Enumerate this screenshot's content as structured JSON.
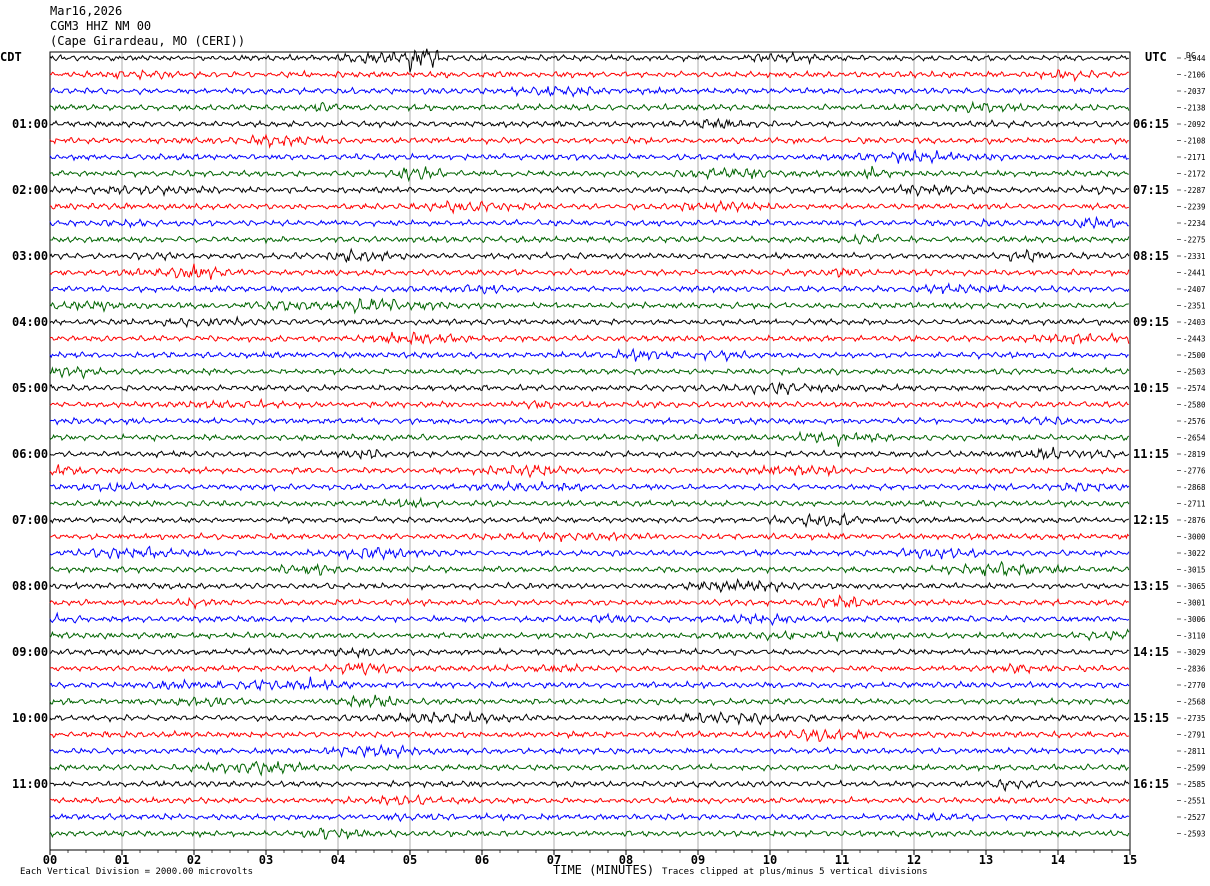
{
  "header": {
    "date": "Mar16,2026",
    "station": "CGM3 HHZ NM 00",
    "location": "(Cape Girardeau, MO (CERI))"
  },
  "chart_data": {
    "type": "line",
    "description_label_left": "CDT",
    "description_label_right": "UTC",
    "dc_label": "DC",
    "xlabel": "TIME (MINUTES)",
    "xlim": [
      0,
      15
    ],
    "x_ticks": [
      "00",
      "01",
      "02",
      "03",
      "04",
      "05",
      "06",
      "07",
      "08",
      "09",
      "10",
      "11",
      "12",
      "13",
      "14",
      "15"
    ],
    "trace_count": 48,
    "trace_colors": [
      "#000000",
      "#ff0000",
      "#0000ff",
      "#006400"
    ],
    "left_hour_labels": [
      "01:00",
      "02:00",
      "03:00",
      "04:00",
      "05:00",
      "06:00",
      "07:00",
      "08:00",
      "09:00",
      "10:00",
      "11:00"
    ],
    "right_hour_labels": [
      "06:15",
      "07:15",
      "08:15",
      "09:15",
      "10:15",
      "11:15",
      "12:15",
      "13:15",
      "14:15",
      "15:15",
      "16:15"
    ],
    "dc_offsets": [
      "-1944",
      "-2106",
      "-2037",
      "-2138",
      "-2092",
      "-2108",
      "-2171",
      "-2172",
      "-2287",
      "-2239",
      "-2234",
      "-2275",
      "-2331",
      "-2441",
      "-2407",
      "-2351",
      "-2403",
      "-2443",
      "-2500",
      "-2503",
      "-2574",
      "-2580",
      "-2576",
      "-2654",
      "-2819",
      "-2776",
      "-2868",
      "-2711",
      "-2876",
      "-3000",
      "-3022",
      "-3015",
      "-3065",
      "-3001",
      "-3006",
      "-3110",
      "-3029",
      "-2836",
      "-2770",
      "-2568",
      "-2735",
      "-2791",
      "-2811",
      "-2599",
      "-2585",
      "-2551",
      "-2527",
      "-2593"
    ]
  },
  "footer": {
    "scale_note": "Each Vertical Division = 2000.00 microvolts",
    "clip_note": "Traces clipped at plus/minus 5 vertical divisions"
  }
}
